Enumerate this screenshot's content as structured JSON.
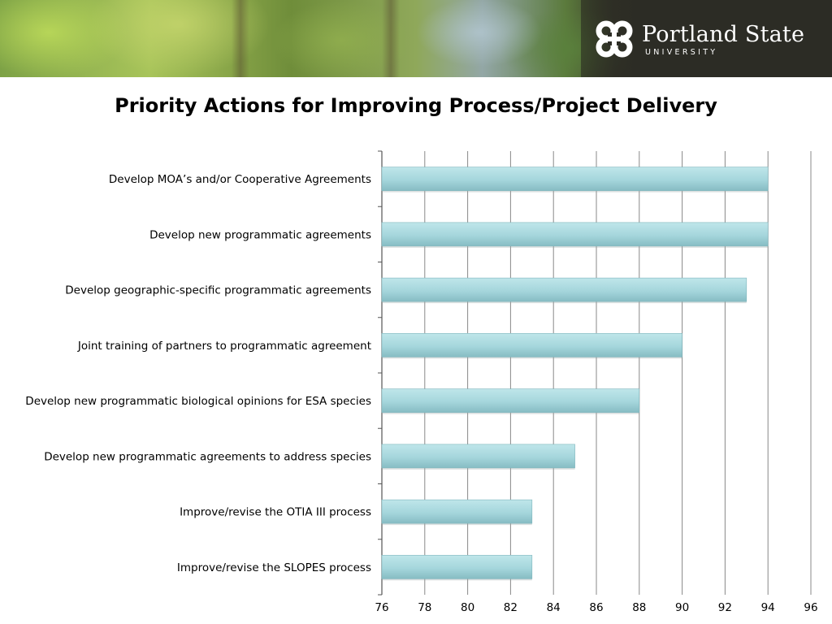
{
  "header": {
    "logo_name": "Portland State",
    "logo_sub": "UNIVERSITY"
  },
  "colors": {
    "bar_fill": "#a9dbe0",
    "bar_edge": "#7fb6bd",
    "gridline": "#888888",
    "banner_dark": "#2c2c25"
  },
  "chart_data": {
    "type": "bar",
    "orientation": "horizontal",
    "title": "Priority Actions for Improving Process/Project Delivery",
    "xlabel": "",
    "ylabel": "",
    "categories": [
      "Develop MOA’s and/or Cooperative Agreements",
      "Develop new programmatic agreements",
      "Develop geographic-specific programmatic agreements",
      "Joint training of partners to programmatic agreement",
      "Develop new programmatic biological opinions for ESA species",
      "Develop new programmatic agreements to address species",
      "Improve/revise the OTIA III process",
      "Improve/revise the SLOPES process"
    ],
    "values": [
      94,
      94,
      93,
      90,
      88,
      85,
      83,
      83
    ],
    "xlim": [
      76,
      96
    ],
    "xticks": [
      76,
      78,
      80,
      82,
      84,
      86,
      88,
      90,
      92,
      94,
      96
    ],
    "grid": true,
    "legend": "none"
  }
}
